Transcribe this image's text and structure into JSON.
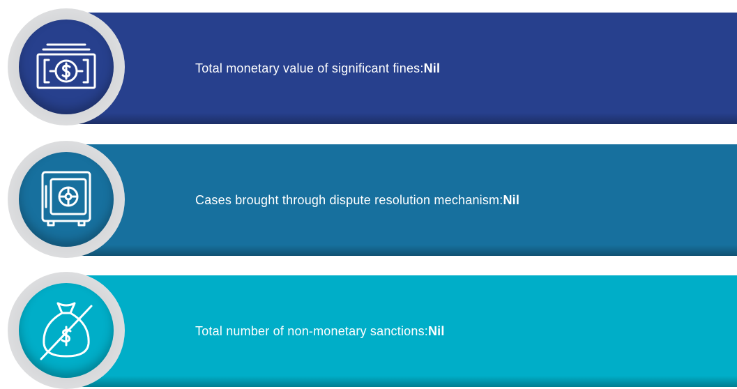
{
  "items": [
    {
      "label": "Total monetary value of significant fines:",
      "value": "Nil"
    },
    {
      "label": "Cases brought through dispute resolution mechanism:",
      "value": "Nil"
    },
    {
      "label": "Total number of non-monetary sanctions:",
      "value": "Nil"
    }
  ]
}
